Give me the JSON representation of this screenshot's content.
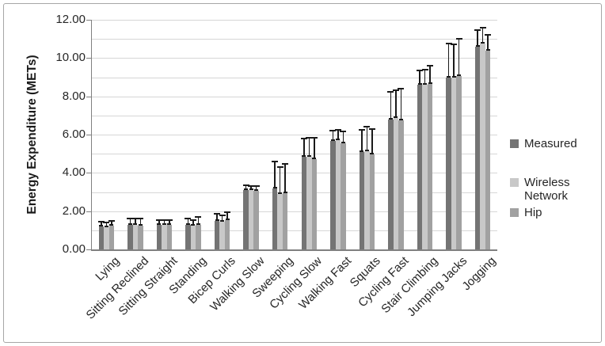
{
  "figure": {
    "background": "#ffffff",
    "border_color": "#a6a6a6"
  },
  "chart_data": {
    "type": "bar",
    "title": "",
    "xlabel": "",
    "ylabel": "Energy Expenditure (METs)",
    "ylim": [
      0,
      12
    ],
    "ytick_step": 2,
    "minor_grid_step": 1,
    "ytick_decimals": 2,
    "grid": true,
    "legend_position": "right",
    "error_bars": "upper",
    "axis_color": "#808080",
    "gridline_color": "#d6d6d6",
    "error_bar_color": "#1a1a1a",
    "categories": [
      "Lying",
      "Sitting Reclined",
      "Sitting Straight",
      "Standing",
      "Bicep Curls",
      "Walking Slow",
      "Sweeping",
      "Cycling Slow",
      "Walking Fast",
      "Squats",
      "Cycling Fast",
      "Stair Climbing",
      "Jumping Jacks",
      "Jogging"
    ],
    "series": [
      {
        "name": "Measured",
        "color": "#747474",
        "values": [
          1.2,
          1.3,
          1.3,
          1.3,
          1.5,
          3.1,
          3.2,
          4.85,
          5.65,
          5.1,
          6.8,
          8.6,
          9.0,
          10.6
        ],
        "error_upper": [
          1.45,
          1.6,
          1.55,
          1.6,
          1.85,
          3.35,
          4.6,
          5.8,
          6.2,
          6.25,
          8.25,
          9.35,
          10.75,
          11.45
        ]
      },
      {
        "name": "Wireless Network",
        "color": "#c8c8c8",
        "values": [
          1.15,
          1.3,
          1.3,
          1.25,
          1.45,
          3.1,
          2.9,
          4.85,
          5.7,
          5.15,
          6.85,
          8.6,
          9.0,
          10.75
        ],
        "error_upper": [
          1.4,
          1.6,
          1.55,
          1.55,
          1.8,
          3.3,
          4.3,
          5.85,
          6.25,
          6.4,
          8.3,
          9.4,
          10.7,
          11.6
        ]
      },
      {
        "name": "Hip",
        "color": "#a1a1a1",
        "values": [
          1.25,
          1.25,
          1.3,
          1.3,
          1.55,
          3.05,
          2.95,
          4.7,
          5.55,
          4.95,
          6.75,
          8.65,
          9.05,
          10.4
        ],
        "error_upper": [
          1.5,
          1.6,
          1.55,
          1.7,
          1.95,
          3.3,
          4.45,
          5.85,
          6.15,
          6.3,
          8.4,
          9.6,
          11.0,
          11.2
        ]
      }
    ]
  }
}
